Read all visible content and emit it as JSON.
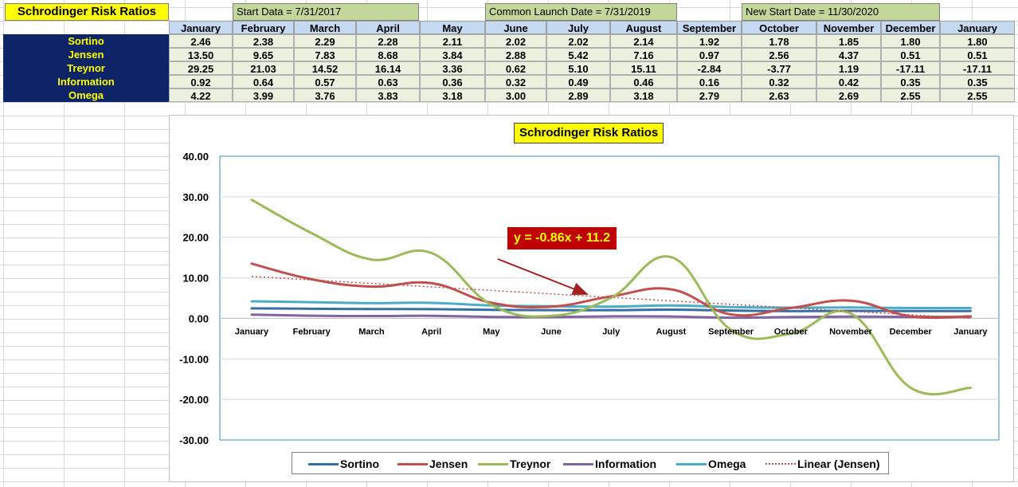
{
  "sheet": {
    "title": "Schrodinger Risk Ratios",
    "banners": [
      "Start Data = 7/31/2017",
      "Common Launch Date = 7/31/2019",
      "New Start Date = 11/30/2020"
    ],
    "months": [
      "January",
      "February",
      "March",
      "April",
      "May",
      "June",
      "July",
      "August",
      "September",
      "October",
      "November",
      "December",
      "January"
    ],
    "rows": [
      {
        "label": "Sortino",
        "values": [
          "2.46",
          "2.38",
          "2.29",
          "2.28",
          "2.11",
          "2.02",
          "2.02",
          "2.14",
          "1.92",
          "1.78",
          "1.85",
          "1.80",
          "1.80"
        ]
      },
      {
        "label": "Jensen",
        "values": [
          "13.50",
          "9.65",
          "7.83",
          "8.68",
          "3.84",
          "2.88",
          "5.42",
          "7.16",
          "0.97",
          "2.56",
          "4.37",
          "0.51",
          "0.51"
        ]
      },
      {
        "label": "Treynor",
        "values": [
          "29.25",
          "21.03",
          "14.52",
          "16.14",
          "3.36",
          "0.62",
          "5.10",
          "15.11",
          "-2.84",
          "-3.77",
          "1.19",
          "-17.11",
          "-17.11"
        ]
      },
      {
        "label": "Information",
        "values": [
          "0.92",
          "0.64",
          "0.57",
          "0.63",
          "0.36",
          "0.32",
          "0.49",
          "0.46",
          "0.16",
          "0.32",
          "0.42",
          "0.35",
          "0.35"
        ]
      },
      {
        "label": "Omega",
        "values": [
          "4.22",
          "3.99",
          "3.76",
          "3.83",
          "3.18",
          "3.00",
          "2.89",
          "3.18",
          "2.79",
          "2.63",
          "2.69",
          "2.55",
          "2.55"
        ]
      }
    ]
  },
  "chart_data": {
    "type": "line",
    "title": "Schrodinger Risk Ratios",
    "categories": [
      "January",
      "February",
      "March",
      "April",
      "May",
      "June",
      "July",
      "August",
      "September",
      "October",
      "November",
      "December",
      "January"
    ],
    "ylim": [
      -30,
      40
    ],
    "yticks": [
      "40.00",
      "30.00",
      "20.00",
      "10.00",
      "0.00",
      "-10.00",
      "-20.00",
      "-30.00"
    ],
    "ytick_values": [
      40,
      30,
      20,
      10,
      0,
      -10,
      -20,
      -30
    ],
    "grid": true,
    "legend_position": "bottom",
    "series": [
      {
        "name": "Sortino",
        "color": "#386fa4",
        "values": [
          2.46,
          2.38,
          2.29,
          2.28,
          2.11,
          2.02,
          2.02,
          2.14,
          1.92,
          1.78,
          1.85,
          1.8,
          1.8
        ]
      },
      {
        "name": "Jensen",
        "color": "#c0504d",
        "values": [
          13.5,
          9.65,
          7.83,
          8.68,
          3.84,
          2.88,
          5.42,
          7.16,
          0.97,
          2.56,
          4.37,
          0.51,
          0.51
        ]
      },
      {
        "name": "Treynor",
        "color": "#9bbb59",
        "values": [
          29.25,
          21.03,
          14.52,
          16.14,
          3.36,
          0.62,
          5.1,
          15.11,
          -2.84,
          -3.77,
          1.19,
          -17.11,
          -17.11
        ]
      },
      {
        "name": "Information",
        "color": "#8064a2",
        "values": [
          0.92,
          0.64,
          0.57,
          0.63,
          0.36,
          0.32,
          0.49,
          0.46,
          0.16,
          0.32,
          0.42,
          0.35,
          0.35
        ]
      },
      {
        "name": "Omega",
        "color": "#4bacc6",
        "values": [
          4.22,
          3.99,
          3.76,
          3.83,
          3.18,
          3.0,
          2.89,
          3.18,
          2.79,
          2.63,
          2.69,
          2.55,
          2.55
        ]
      }
    ],
    "trendline": {
      "name": "Linear (Jensen)",
      "color": "#c0504d",
      "slope": -0.86,
      "intercept": 11.2,
      "equation": "y = -0.86x + 11.2"
    }
  }
}
